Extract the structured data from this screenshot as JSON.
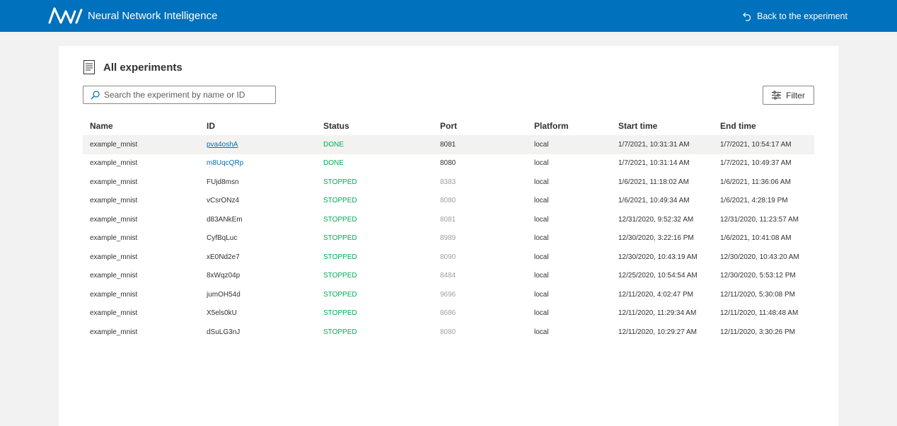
{
  "header": {
    "app_title": "Neural Network Intelligence",
    "back_label": "Back to the experiment",
    "background_color": "#0071bc"
  },
  "main": {
    "title": "All experiments",
    "title_icon": "document-list-icon",
    "search": {
      "placeholder": "Search the experiment by name or ID",
      "value": ""
    },
    "filter_label": "Filter"
  },
  "table": {
    "columns": [
      "Name",
      "ID",
      "Status",
      "Port",
      "Platform",
      "Start time",
      "End time"
    ],
    "rows": [
      {
        "name": "example_mnist",
        "id": "pva4oshA",
        "status": "DONE",
        "port": "8081",
        "platform": "local",
        "start": "1/7/2021, 10:31:31 AM",
        "end": "1/7/2021, 10:54:17 AM"
      },
      {
        "name": "example_mnist",
        "id": "m8UqcQRp",
        "status": "DONE",
        "port": "8080",
        "platform": "local",
        "start": "1/7/2021, 10:31:14 AM",
        "end": "1/7/2021, 10:49:37 AM"
      },
      {
        "name": "example_mnist",
        "id": "FUjd8msn",
        "status": "STOPPED",
        "port": "8383",
        "platform": "local",
        "start": "1/6/2021, 11:18:02 AM",
        "end": "1/6/2021, 11:36:06 AM"
      },
      {
        "name": "example_mnist",
        "id": "vCsrONz4",
        "status": "STOPPED",
        "port": "8080",
        "platform": "local",
        "start": "1/6/2021, 10:49:34 AM",
        "end": "1/6/2021, 4:28:19 PM"
      },
      {
        "name": "example_mnist",
        "id": "d83ANkEm",
        "status": "STOPPED",
        "port": "8081",
        "platform": "local",
        "start": "12/31/2020, 9:52:32 AM",
        "end": "12/31/2020, 11:23:57 AM"
      },
      {
        "name": "example_mnist",
        "id": "CyfBqLuc",
        "status": "STOPPED",
        "port": "8989",
        "platform": "local",
        "start": "12/30/2020, 3:22:16 PM",
        "end": "1/6/2021, 10:41:08 AM"
      },
      {
        "name": "example_mnist",
        "id": "xE0Nd2e7",
        "status": "STOPPED",
        "port": "8090",
        "platform": "local",
        "start": "12/30/2020, 10:43:19 AM",
        "end": "12/30/2020, 10:43:20 AM"
      },
      {
        "name": "example_mnist",
        "id": "8xWqz04p",
        "status": "STOPPED",
        "port": "8484",
        "platform": "local",
        "start": "12/25/2020, 10:54:54 AM",
        "end": "12/30/2020, 5:53:12 PM"
      },
      {
        "name": "example_mnist",
        "id": "jumOH54d",
        "status": "STOPPED",
        "port": "9696",
        "platform": "local",
        "start": "12/11/2020, 4:02:47 PM",
        "end": "12/11/2020, 5:30:08 PM"
      },
      {
        "name": "example_mnist",
        "id": "X5els0kU",
        "status": "STOPPED",
        "port": "8686",
        "platform": "local",
        "start": "12/11/2020, 11:29:34 AM",
        "end": "12/11/2020, 11:48:48 AM"
      },
      {
        "name": "example_mnist",
        "id": "dSuLG3nJ",
        "status": "STOPPED",
        "port": "8080",
        "platform": "local",
        "start": "12/11/2020, 10:29:27 AM",
        "end": "12/11/2020, 3:30:26 PM"
      }
    ]
  },
  "colors": {
    "accent": "#0071bc",
    "status_green": "#00ad56",
    "dim_text": "#a19f9d"
  }
}
